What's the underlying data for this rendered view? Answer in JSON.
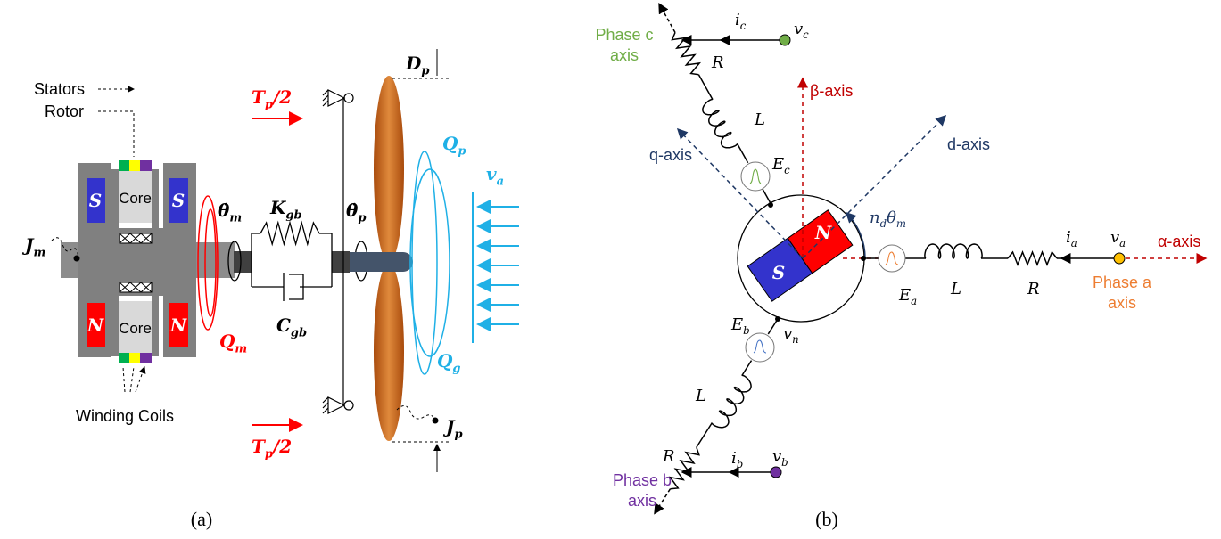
{
  "panel_a": {
    "stators": "Stators",
    "rotor": "Rotor",
    "cores": [
      "Core",
      "Core"
    ],
    "magnets": [
      "S",
      "S",
      "N",
      "N"
    ],
    "winding_coils": "Winding Coils",
    "J_m": [
      "J",
      "m"
    ],
    "theta_dot_m": [
      "θ̇",
      "m"
    ],
    "K_gb": [
      "K",
      "gb"
    ],
    "C_gb": [
      "C",
      "gb"
    ],
    "Q_m": [
      "Q",
      "m"
    ],
    "T_p_top": [
      "T",
      "p",
      "/2"
    ],
    "T_p_bottom": [
      "T",
      "p",
      "/2"
    ],
    "theta_dot_p": [
      "θ̇",
      "p"
    ],
    "D_p": [
      "D",
      "p"
    ],
    "Q_p": [
      "Q",
      "p"
    ],
    "Q_g": [
      "Q",
      "g"
    ],
    "v_a": [
      "v",
      "a"
    ],
    "J_p": [
      "J",
      "p"
    ],
    "caption": "(a)"
  },
  "panel_b": {
    "phase_c_axis": [
      "Phase c",
      "axis"
    ],
    "i_c": [
      "i",
      "c"
    ],
    "v_c": [
      "v",
      "c"
    ],
    "R_c": "R",
    "L_c": "L",
    "beta_axis": "β-axis",
    "q_axis": "q-axis",
    "d_axis": "d-axis",
    "E_c": [
      "E",
      "c"
    ],
    "angle": [
      "n",
      "d",
      "θ",
      "m"
    ],
    "magnets": [
      "N",
      "S"
    ],
    "E_a": [
      "E",
      "a"
    ],
    "L_a": "L",
    "R_a": "R",
    "i_a": [
      "i",
      "a"
    ],
    "v_a": [
      "v",
      "a"
    ],
    "alpha_axis": "α-axis",
    "phase_a_axis": [
      "Phase a",
      "axis"
    ],
    "E_b": [
      "E",
      "b"
    ],
    "v_n": [
      "v",
      "n"
    ],
    "L_b": "L",
    "R_b": "R",
    "i_b": [
      "i",
      "b"
    ],
    "v_b": [
      "v",
      "b"
    ],
    "phase_b_axis": [
      "Phase b",
      "axis"
    ],
    "caption": "(b)"
  }
}
